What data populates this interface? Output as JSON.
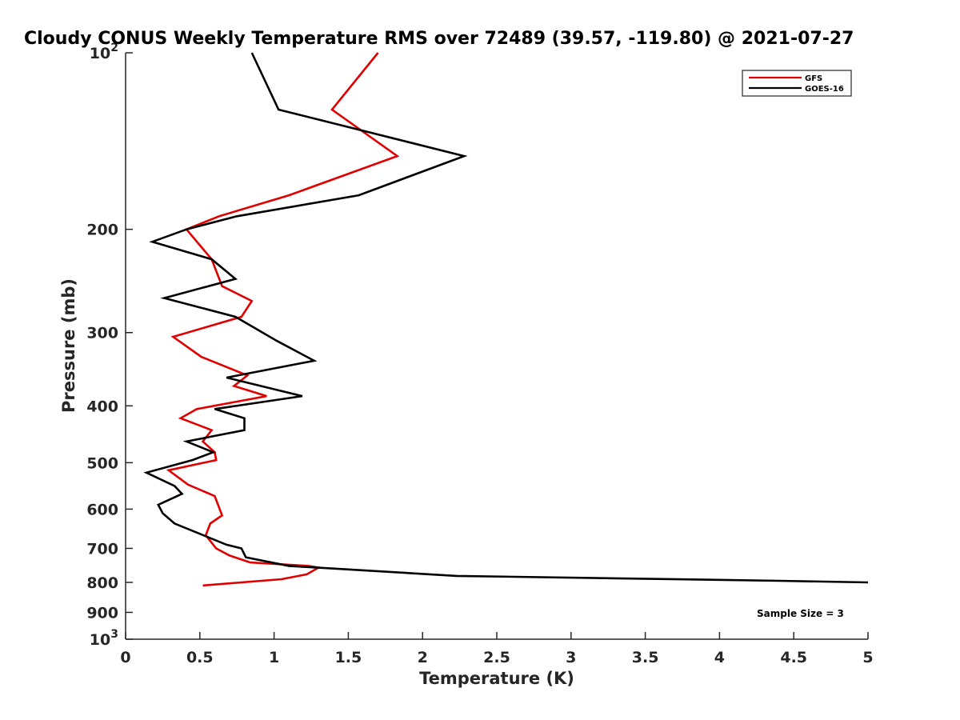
{
  "chart_data": {
    "type": "line",
    "title": "Cloudy CONUS Weekly Temperature RMS over 72489 (39.57, -119.80) @ 2021-07-27",
    "xlabel": "Temperature (K)",
    "ylabel": "Pressure (mb)",
    "xlim": [
      0,
      5
    ],
    "ylim": [
      100,
      1000
    ],
    "y_scale": "log",
    "y_reversed": true,
    "x_ticks": [
      0,
      0.5,
      1,
      1.5,
      2,
      2.5,
      3,
      3.5,
      4,
      4.5,
      5
    ],
    "x_tick_labels": [
      "0",
      "0.5",
      "1",
      "1.5",
      "2",
      "2.5",
      "3",
      "3.5",
      "4",
      "4.5",
      "5"
    ],
    "y_ticks": [
      100,
      200,
      300,
      400,
      500,
      600,
      700,
      800,
      900,
      1000
    ],
    "y_tick_labels": [
      "10^2",
      "200",
      "300",
      "400",
      "500",
      "600",
      "700",
      "800",
      "900",
      "10^3"
    ],
    "legend_position": "top-right",
    "annotation": "Sample Size = 3",
    "series": [
      {
        "name": "GFS",
        "color": "#e00000",
        "points": [
          [
            1.7,
            100
          ],
          [
            1.39,
            125
          ],
          [
            1.83,
            150
          ],
          [
            1.1,
            175
          ],
          [
            0.63,
            190
          ],
          [
            0.41,
            200
          ],
          [
            0.58,
            225
          ],
          [
            0.65,
            250
          ],
          [
            0.85,
            265
          ],
          [
            0.78,
            282
          ],
          [
            0.32,
            305
          ],
          [
            0.51,
            330
          ],
          [
            0.82,
            355
          ],
          [
            0.73,
            370
          ],
          [
            0.95,
            385
          ],
          [
            0.48,
            405
          ],
          [
            0.37,
            420
          ],
          [
            0.58,
            440
          ],
          [
            0.52,
            460
          ],
          [
            0.6,
            480
          ],
          [
            0.61,
            495
          ],
          [
            0.29,
            515
          ],
          [
            0.42,
            545
          ],
          [
            0.6,
            570
          ],
          [
            0.65,
            615
          ],
          [
            0.57,
            635
          ],
          [
            0.54,
            665
          ],
          [
            0.61,
            700
          ],
          [
            0.7,
            720
          ],
          [
            0.84,
            740
          ],
          [
            1.23,
            750
          ],
          [
            1.3,
            755
          ],
          [
            1.22,
            775
          ],
          [
            1.05,
            790
          ],
          [
            0.52,
            810
          ]
        ]
      },
      {
        "name": "GOES-16",
        "color": "#000000",
        "points": [
          [
            0.85,
            100
          ],
          [
            1.03,
            125
          ],
          [
            2.28,
            150
          ],
          [
            1.57,
            175
          ],
          [
            0.75,
            190
          ],
          [
            0.41,
            200
          ],
          [
            0.18,
            210
          ],
          [
            0.58,
            225
          ],
          [
            0.74,
            243
          ],
          [
            0.26,
            262
          ],
          [
            0.74,
            282
          ],
          [
            1.02,
            310
          ],
          [
            1.27,
            335
          ],
          [
            0.68,
            358
          ],
          [
            1.19,
            385
          ],
          [
            0.6,
            405
          ],
          [
            0.8,
            420
          ],
          [
            0.8,
            440
          ],
          [
            0.41,
            460
          ],
          [
            0.59,
            480
          ],
          [
            0.45,
            495
          ],
          [
            0.14,
            520
          ],
          [
            0.33,
            548
          ],
          [
            0.38,
            565
          ],
          [
            0.22,
            590
          ],
          [
            0.25,
            610
          ],
          [
            0.33,
            635
          ],
          [
            0.68,
            690
          ],
          [
            0.78,
            700
          ],
          [
            0.81,
            725
          ],
          [
            1.1,
            750
          ],
          [
            2.23,
            780
          ],
          [
            4.4,
            795
          ],
          [
            5.0,
            800
          ]
        ]
      }
    ]
  }
}
